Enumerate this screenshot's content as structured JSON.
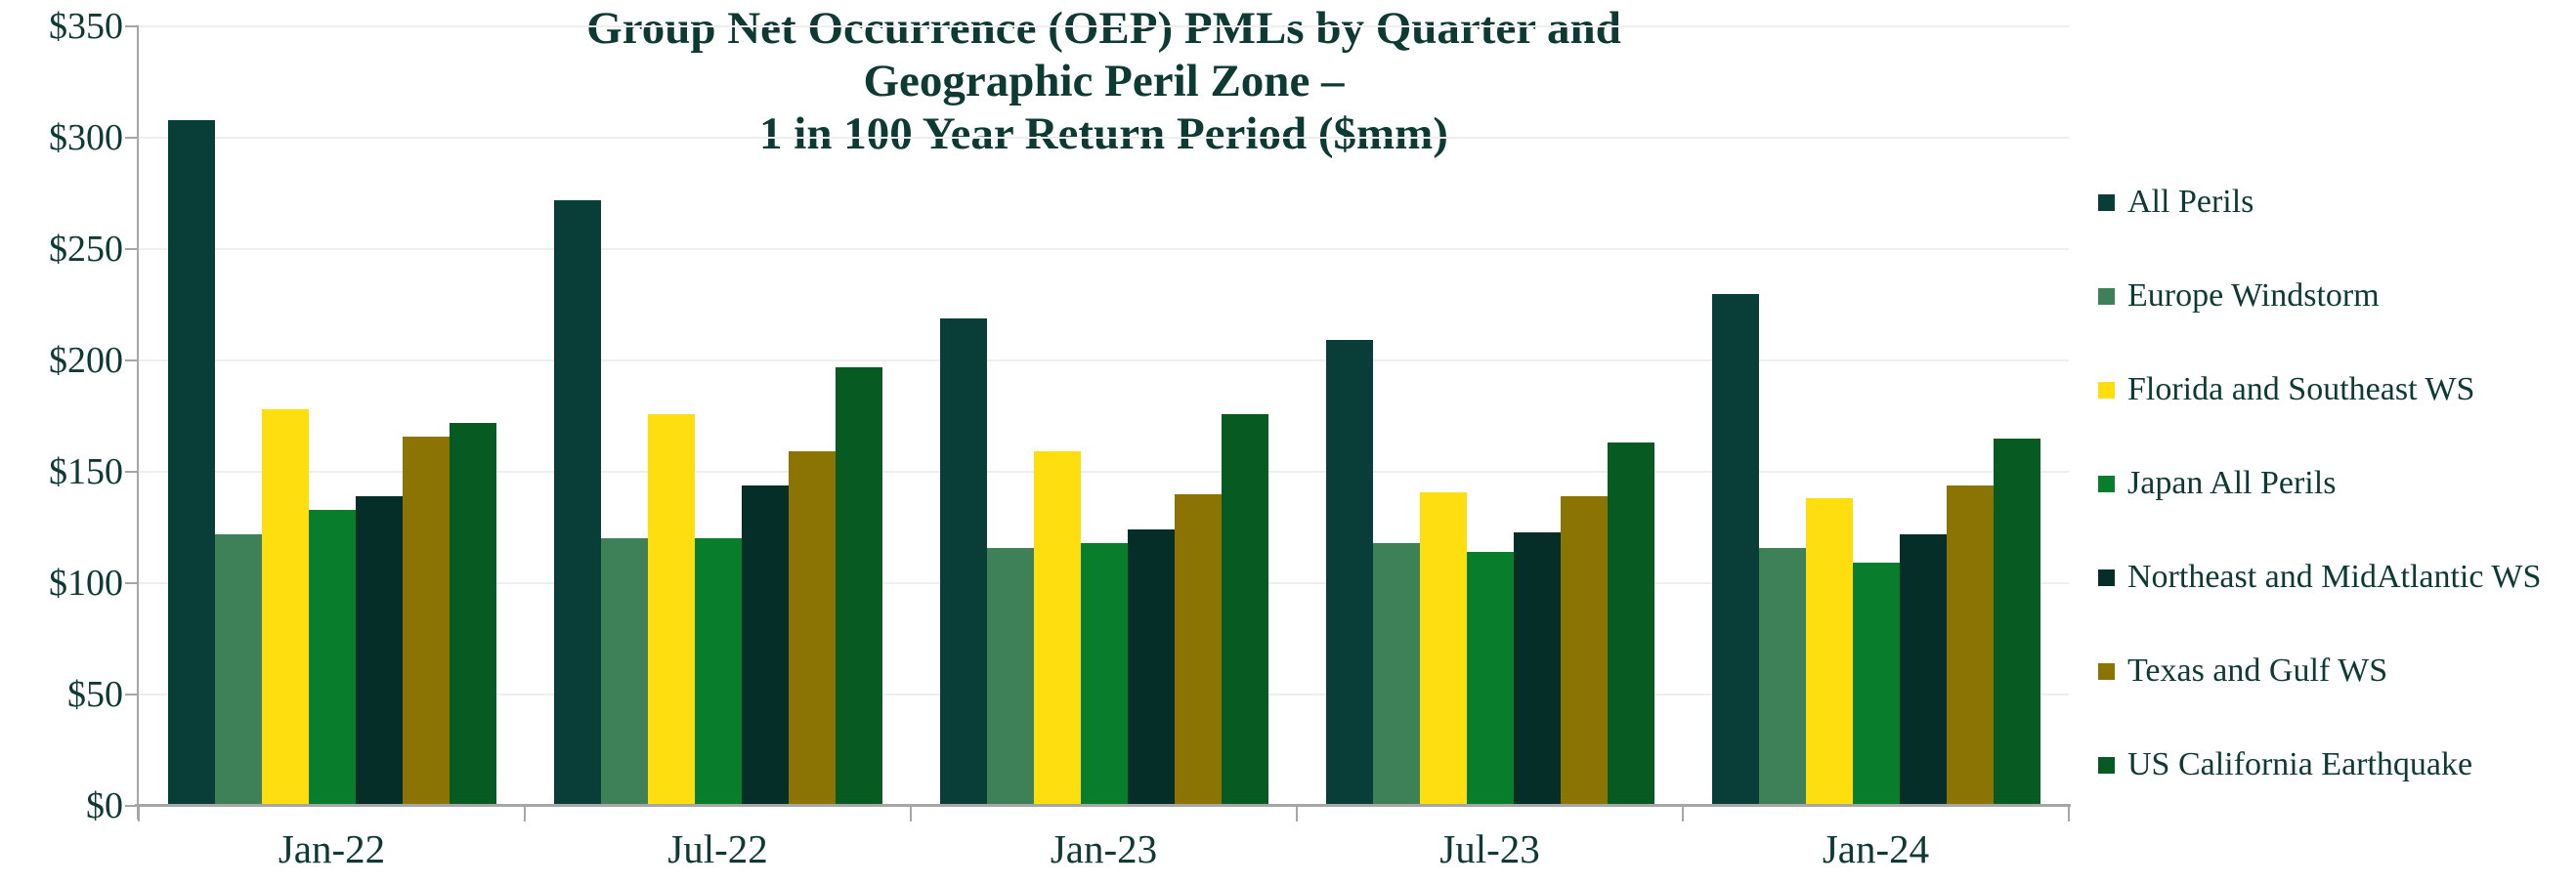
{
  "page": {
    "background": "#ffffff"
  },
  "chart_data": {
    "type": "bar",
    "title": "Group Net Occurrence (OEP) PMLs by Quarter and Geographic Peril Zone – 1 in 100 Year Return Period ($mm)",
    "title_lines": [
      "Group Net Occurrence (OEP) PMLs by Quarter and",
      "Geographic Peril Zone –",
      "1 in 100 Year Return Period ($mm)"
    ],
    "categories": [
      "Jan-22",
      "Jul-22",
      "Jan-23",
      "Jul-23",
      "Jan-24"
    ],
    "series": [
      {
        "name": "All Perils",
        "color": "#083d38",
        "values": [
          308,
          272,
          219,
          209,
          230
        ]
      },
      {
        "name": "Europe Windstorm",
        "color": "#3e8159",
        "values": [
          122,
          120,
          116,
          118,
          116
        ]
      },
      {
        "name": "Florida and Southeast WS",
        "color": "#fede0e",
        "values": [
          178,
          176,
          159,
          141,
          138
        ]
      },
      {
        "name": "Japan All Perils",
        "color": "#087d2c",
        "values": [
          133,
          120,
          118,
          114,
          109
        ]
      },
      {
        "name": "Northeast and MidAtlantic WS",
        "color": "#062e29",
        "values": [
          139,
          144,
          124,
          123,
          122
        ]
      },
      {
        "name": "Texas and Gulf WS",
        "color": "#8b7404",
        "values": [
          166,
          159,
          140,
          139,
          144
        ]
      },
      {
        "name": "US California Earthquake",
        "color": "#085a23",
        "values": [
          172,
          197,
          176,
          163,
          165
        ]
      }
    ],
    "ylim": [
      0,
      350
    ],
    "ytick_step": 50,
    "ytick_prefix": "$",
    "ytick_labels": [
      "$0",
      "$50",
      "$100",
      "$150",
      "$200",
      "$250",
      "$300",
      "$350"
    ],
    "grid": "horizontal",
    "legend_position": "right",
    "colors": {
      "text": "#0e3a34",
      "axis": "#a6a6a6",
      "gridline": "#eeeeee"
    }
  }
}
